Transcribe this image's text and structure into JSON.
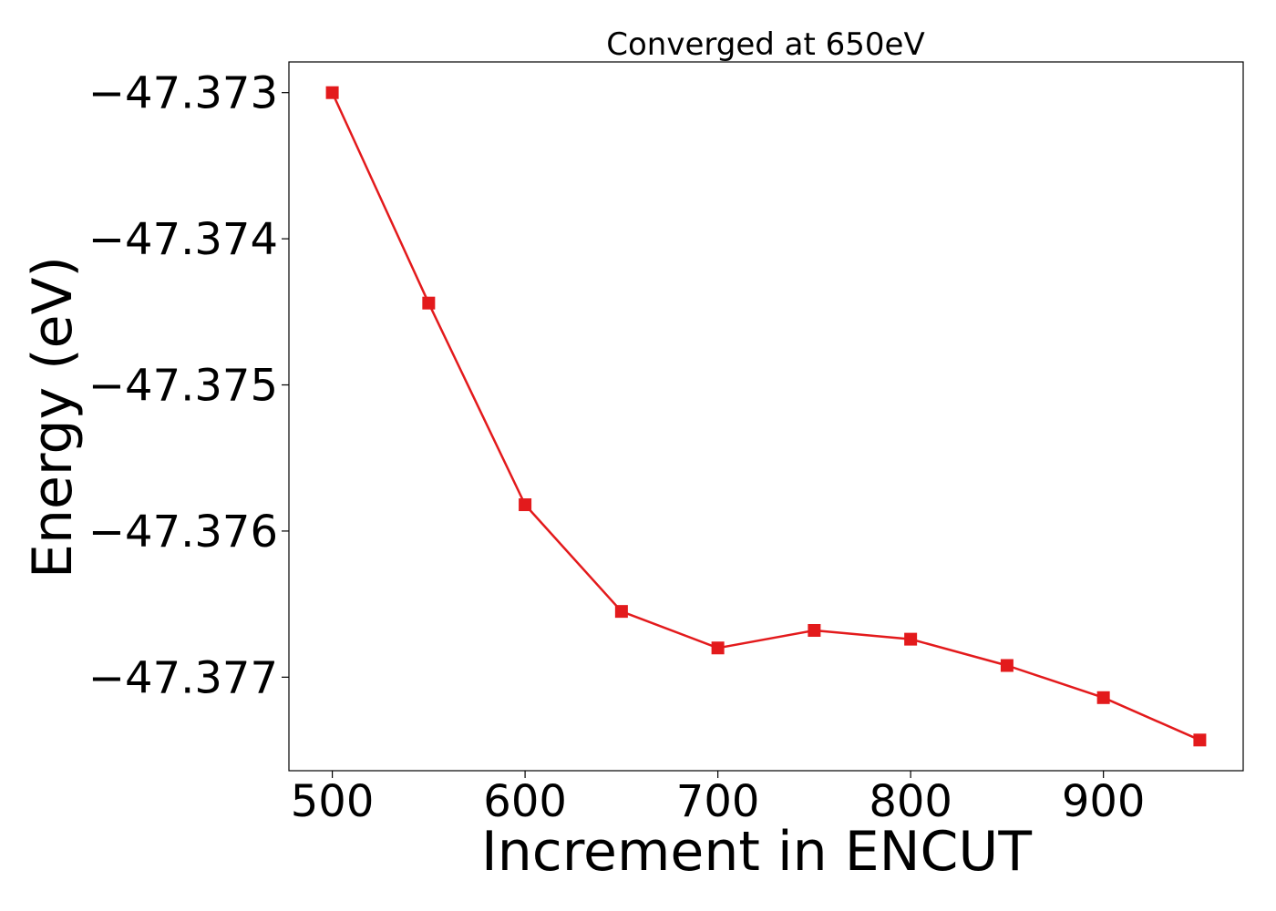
{
  "chart_data": {
    "type": "line",
    "title": "Converged at 650eV",
    "xlabel": "Increment in ENCUT",
    "ylabel": "Energy (eV)",
    "x": [
      500,
      550,
      600,
      650,
      700,
      750,
      800,
      850,
      900,
      950
    ],
    "series": [
      {
        "values": [
          -47.373,
          -47.37444,
          -47.37582,
          -47.37655,
          -47.3768,
          -47.37668,
          -47.37674,
          -47.37692,
          -47.37714,
          -47.37743
        ],
        "color": "#e31a1c",
        "marker": "square"
      }
    ],
    "xticks": [
      500,
      600,
      700,
      800,
      900
    ],
    "xtick_labels": [
      "500",
      "600",
      "700",
      "800",
      "900"
    ],
    "yticks": [
      -47.373,
      -47.374,
      -47.375,
      -47.376,
      -47.377
    ],
    "ytick_labels": [
      "−47.373",
      "−47.374",
      "−47.375",
      "−47.376",
      "−47.377"
    ],
    "xlim": [
      477.5,
      972.5
    ],
    "ylim": [
      -47.37764,
      -47.37279
    ],
    "grid": false,
    "legend": "none"
  }
}
